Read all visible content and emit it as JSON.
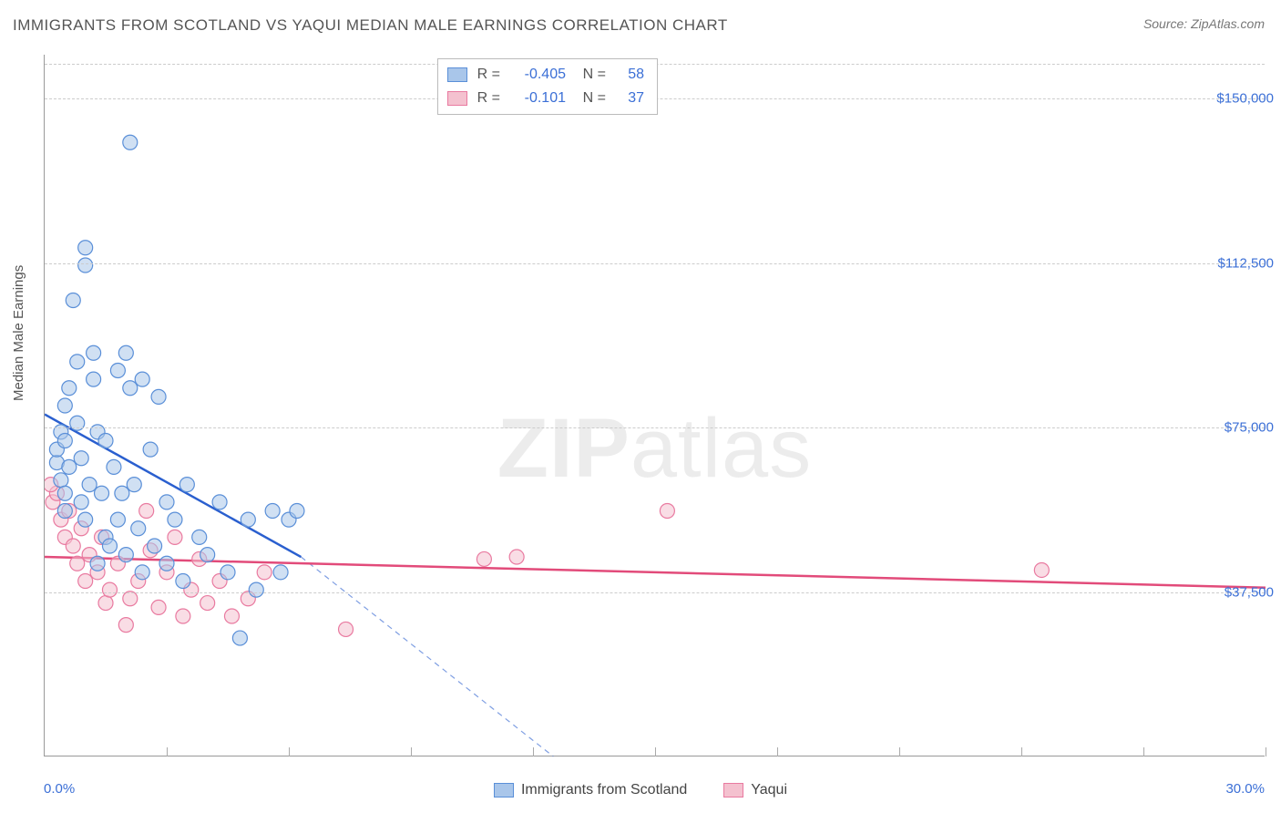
{
  "title": "IMMIGRANTS FROM SCOTLAND VS YAQUI MEDIAN MALE EARNINGS CORRELATION CHART",
  "source_prefix": "Source: ",
  "source": "ZipAtlas.com",
  "y_axis_label": "Median Male Earnings",
  "watermark_a": "ZIP",
  "watermark_b": "atlas",
  "chart": {
    "type": "scatter",
    "xlim": [
      0,
      30
    ],
    "ylim": [
      0,
      160000
    ],
    "x_tick_positions": [
      0,
      3,
      6,
      9,
      12,
      15,
      18,
      21,
      24,
      27,
      30
    ],
    "x_tick_labels_shown": {
      "0": "0.0%",
      "30": "30.0%"
    },
    "y_ticks": [
      37500,
      75000,
      112500,
      150000
    ],
    "y_tick_labels": [
      "$37,500",
      "$75,000",
      "$112,500",
      "$150,000"
    ],
    "background_color": "#ffffff",
    "grid_color": "#cccccc",
    "axis_color": "#999999",
    "tick_label_color": "#3b6fd6",
    "marker_radius": 8,
    "marker_opacity": 0.55,
    "marker_stroke_width": 1.2,
    "series": [
      {
        "key": "scotland",
        "label": "Immigrants from Scotland",
        "color_fill": "#a9c6ea",
        "color_stroke": "#5a8fd8",
        "trend_color": "#2a5fcf",
        "R": "-0.405",
        "N": "58",
        "trend": {
          "x1": 0,
          "y1": 78000,
          "x2": 6.3,
          "y2": 45500,
          "dash_x2": 12.5,
          "dash_y2": 0
        },
        "points": [
          [
            0.3,
            67000
          ],
          [
            0.3,
            70000
          ],
          [
            0.4,
            63000
          ],
          [
            0.4,
            74000
          ],
          [
            0.5,
            60000
          ],
          [
            0.5,
            72000
          ],
          [
            0.5,
            80000
          ],
          [
            0.5,
            56000
          ],
          [
            0.6,
            84000
          ],
          [
            0.6,
            66000
          ],
          [
            0.7,
            104000
          ],
          [
            0.8,
            90000
          ],
          [
            0.8,
            76000
          ],
          [
            0.9,
            68000
          ],
          [
            0.9,
            58000
          ],
          [
            1.0,
            112000
          ],
          [
            1.0,
            116000
          ],
          [
            1.0,
            54000
          ],
          [
            1.1,
            62000
          ],
          [
            1.2,
            92000
          ],
          [
            1.2,
            86000
          ],
          [
            1.3,
            74000
          ],
          [
            1.3,
            44000
          ],
          [
            1.4,
            60000
          ],
          [
            1.5,
            72000
          ],
          [
            1.5,
            50000
          ],
          [
            1.6,
            48000
          ],
          [
            1.7,
            66000
          ],
          [
            1.8,
            88000
          ],
          [
            1.8,
            54000
          ],
          [
            1.9,
            60000
          ],
          [
            2.0,
            92000
          ],
          [
            2.0,
            46000
          ],
          [
            2.1,
            84000
          ],
          [
            2.1,
            140000
          ],
          [
            2.2,
            62000
          ],
          [
            2.3,
            52000
          ],
          [
            2.4,
            86000
          ],
          [
            2.4,
            42000
          ],
          [
            2.6,
            70000
          ],
          [
            2.7,
            48000
          ],
          [
            2.8,
            82000
          ],
          [
            3.0,
            58000
          ],
          [
            3.0,
            44000
          ],
          [
            3.2,
            54000
          ],
          [
            3.4,
            40000
          ],
          [
            3.5,
            62000
          ],
          [
            3.8,
            50000
          ],
          [
            4.0,
            46000
          ],
          [
            4.3,
            58000
          ],
          [
            4.5,
            42000
          ],
          [
            4.8,
            27000
          ],
          [
            5.0,
            54000
          ],
          [
            5.2,
            38000
          ],
          [
            5.6,
            56000
          ],
          [
            5.8,
            42000
          ],
          [
            6.0,
            54000
          ],
          [
            6.2,
            56000
          ]
        ]
      },
      {
        "key": "yaqui",
        "label": "Yaqui",
        "color_fill": "#f4c1cf",
        "color_stroke": "#e97aa0",
        "trend_color": "#e24b7a",
        "R": "-0.101",
        "N": "37",
        "trend": {
          "x1": 0,
          "y1": 45500,
          "x2": 30,
          "y2": 38500,
          "dash_x2": 30,
          "dash_y2": 38500
        },
        "points": [
          [
            0.2,
            58000
          ],
          [
            0.3,
            60000
          ],
          [
            0.4,
            54000
          ],
          [
            0.5,
            50000
          ],
          [
            0.6,
            56000
          ],
          [
            0.7,
            48000
          ],
          [
            0.8,
            44000
          ],
          [
            0.9,
            52000
          ],
          [
            1.0,
            40000
          ],
          [
            1.1,
            46000
          ],
          [
            1.3,
            42000
          ],
          [
            1.4,
            50000
          ],
          [
            1.5,
            35000
          ],
          [
            1.6,
            38000
          ],
          [
            1.8,
            44000
          ],
          [
            2.0,
            30000
          ],
          [
            2.1,
            36000
          ],
          [
            2.3,
            40000
          ],
          [
            2.5,
            56000
          ],
          [
            2.6,
            47000
          ],
          [
            2.8,
            34000
          ],
          [
            3.0,
            42000
          ],
          [
            3.2,
            50000
          ],
          [
            3.4,
            32000
          ],
          [
            3.6,
            38000
          ],
          [
            3.8,
            45000
          ],
          [
            4.0,
            35000
          ],
          [
            4.3,
            40000
          ],
          [
            4.6,
            32000
          ],
          [
            5.0,
            36000
          ],
          [
            5.4,
            42000
          ],
          [
            7.4,
            29000
          ],
          [
            10.8,
            45000
          ],
          [
            11.6,
            45500
          ],
          [
            15.3,
            56000
          ],
          [
            24.5,
            42500
          ],
          [
            0.15,
            62000
          ]
        ]
      }
    ]
  },
  "legend": [
    {
      "label": "Immigrants from Scotland",
      "fill": "#a9c6ea",
      "stroke": "#5a8fd8"
    },
    {
      "label": "Yaqui",
      "fill": "#f4c1cf",
      "stroke": "#e97aa0"
    }
  ]
}
